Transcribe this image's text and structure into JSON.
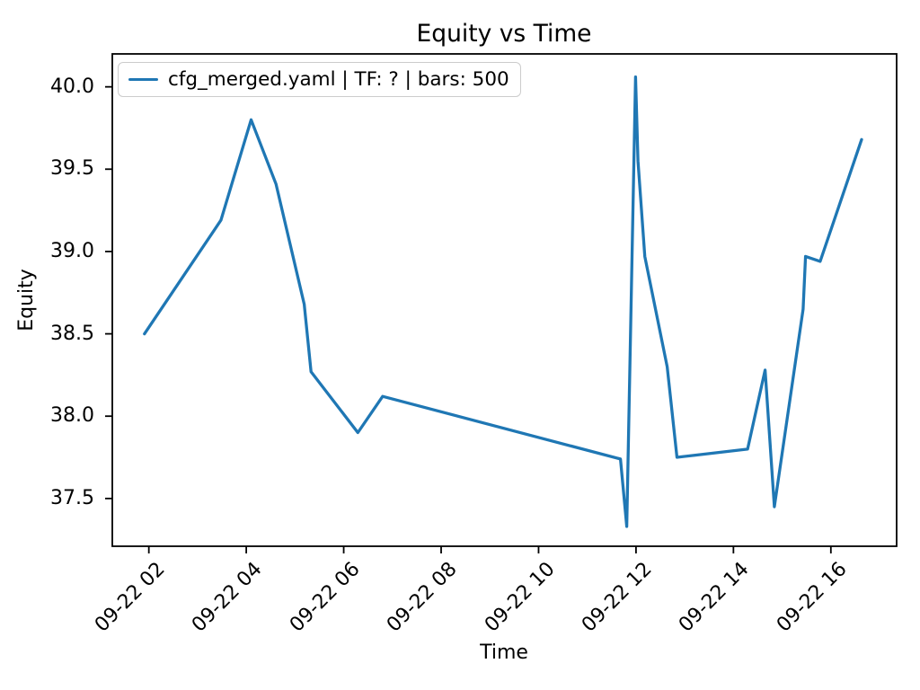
{
  "figure": {
    "background": "#ffffff",
    "text_color": "#000000",
    "legend_border_color": "#cccccc"
  },
  "chart_data": {
    "type": "line",
    "title": "Equity vs Time",
    "xlabel": "Time",
    "ylabel": "Equity",
    "legend_position": "upper left",
    "grid": false,
    "line_color": "#1f77b4",
    "x_tick_labels": [
      "09-22 02",
      "09-22 04",
      "09-22 06",
      "09-22 08",
      "09-22 10",
      "09-22 12",
      "09-22 14",
      "09-22 16"
    ],
    "x_tick_hours": [
      2,
      4,
      6,
      8,
      10,
      12,
      14,
      16
    ],
    "y_tick_labels": [
      "37.5",
      "38.0",
      "38.5",
      "39.0",
      "39.5",
      "40.0"
    ],
    "y_ticks": [
      37.5,
      38.0,
      38.5,
      39.0,
      39.5,
      40.0
    ],
    "xlim_hours": [
      1.25,
      17.35
    ],
    "ylim": [
      37.21,
      40.2
    ],
    "series": [
      {
        "name": "cfg_merged.yaml | TF: ? | bars: 500",
        "points": [
          {
            "time": "09-22 01:55",
            "hour": 1.91,
            "equity": 38.5
          },
          {
            "time": "09-22 03:29",
            "hour": 3.48,
            "equity": 39.19
          },
          {
            "time": "09-22 04:06",
            "hour": 4.1,
            "equity": 39.8
          },
          {
            "time": "09-22 04:37",
            "hour": 4.61,
            "equity": 39.41
          },
          {
            "time": "09-22 05:11",
            "hour": 5.19,
            "equity": 38.68
          },
          {
            "time": "09-22 05:20",
            "hour": 5.33,
            "equity": 38.27
          },
          {
            "time": "09-22 06:17",
            "hour": 6.29,
            "equity": 37.9
          },
          {
            "time": "09-22 06:48",
            "hour": 6.8,
            "equity": 38.12
          },
          {
            "time": "09-22 11:41",
            "hour": 11.68,
            "equity": 37.74
          },
          {
            "time": "09-22 11:49",
            "hour": 11.81,
            "equity": 37.33
          },
          {
            "time": "09-22 11:59",
            "hour": 11.99,
            "equity": 40.06
          },
          {
            "time": "09-22 12:02",
            "hour": 12.04,
            "equity": 39.55
          },
          {
            "time": "09-22 12:11",
            "hour": 12.18,
            "equity": 38.97
          },
          {
            "time": "09-22 12:38",
            "hour": 12.64,
            "equity": 38.3
          },
          {
            "time": "09-22 12:50",
            "hour": 12.84,
            "equity": 37.75
          },
          {
            "time": "09-22 14:17",
            "hour": 14.29,
            "equity": 37.8
          },
          {
            "time": "09-22 14:39",
            "hour": 14.65,
            "equity": 38.28
          },
          {
            "time": "09-22 14:50",
            "hour": 14.84,
            "equity": 37.45
          },
          {
            "time": "09-22 15:26",
            "hour": 15.43,
            "equity": 38.65
          },
          {
            "time": "09-22 15:29",
            "hour": 15.48,
            "equity": 38.97
          },
          {
            "time": "09-22 15:47",
            "hour": 15.78,
            "equity": 38.94
          },
          {
            "time": "09-22 16:38",
            "hour": 16.63,
            "equity": 39.68
          }
        ]
      }
    ]
  }
}
